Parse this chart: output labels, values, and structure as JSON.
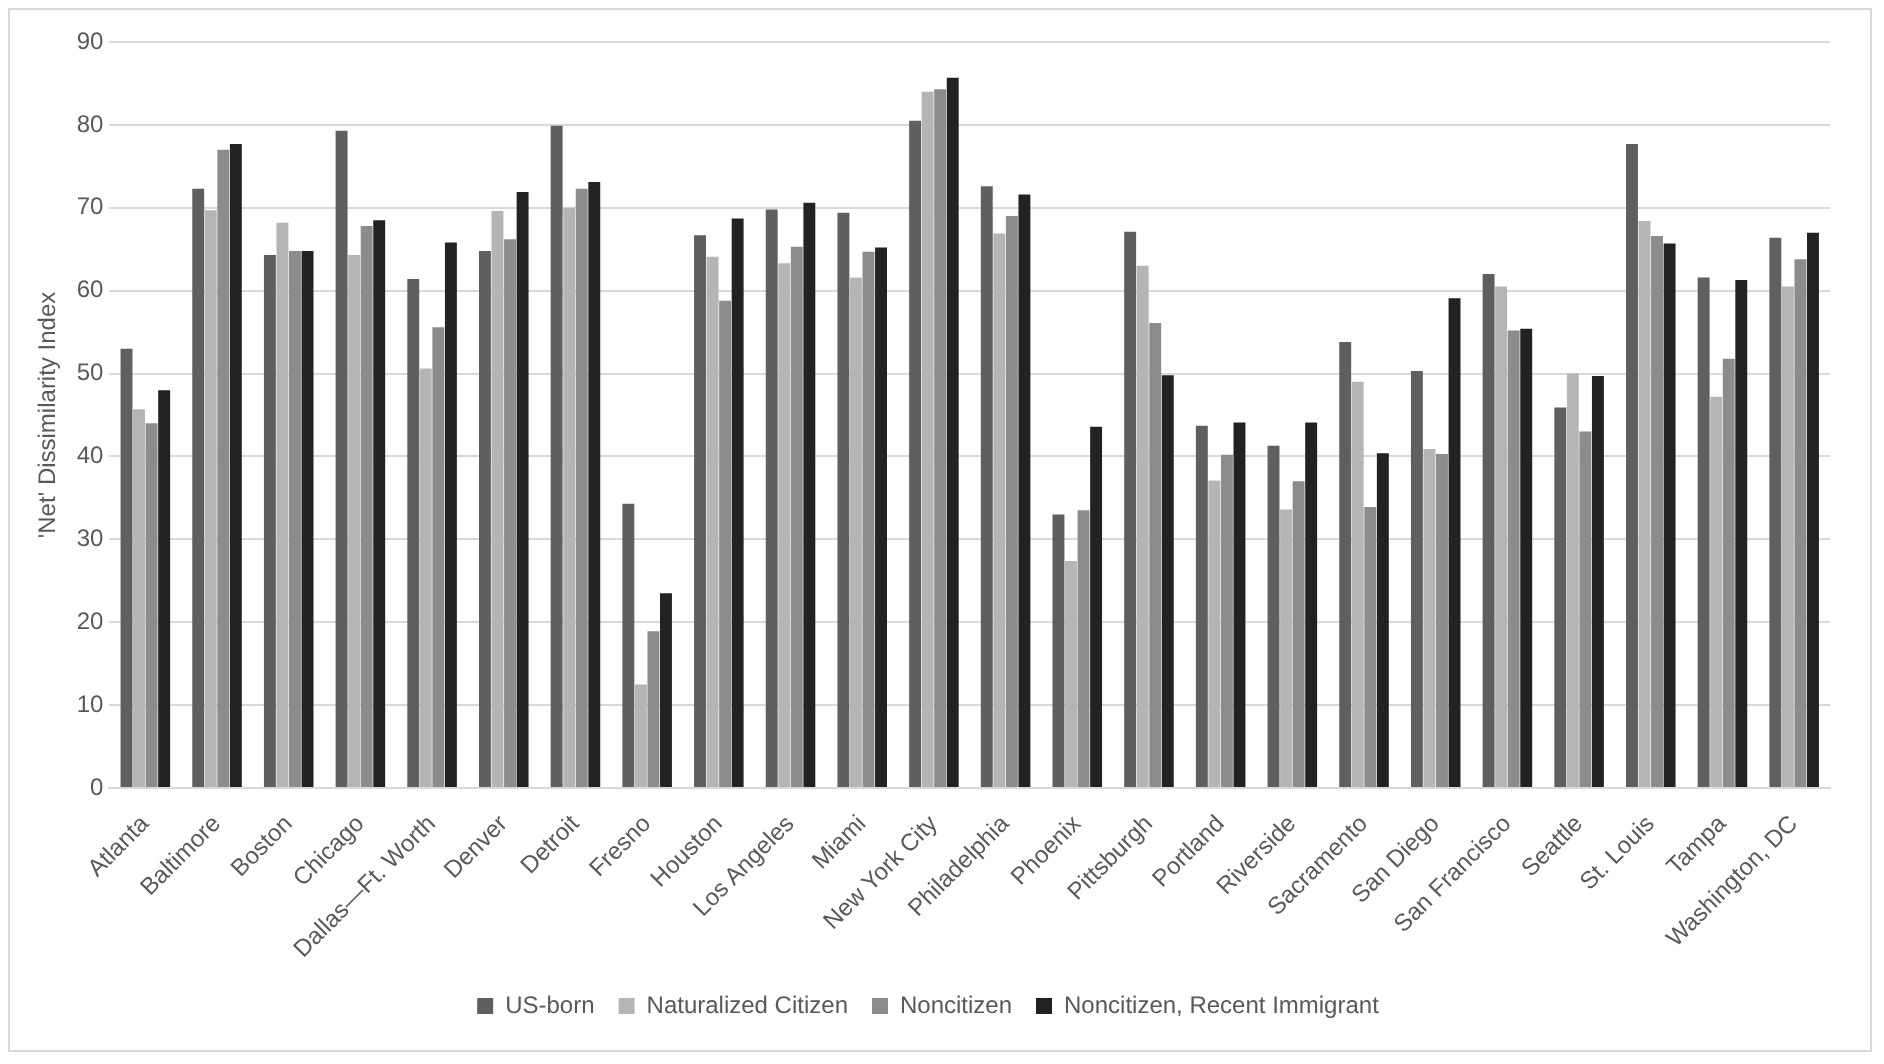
{
  "chart_data": {
    "type": "bar",
    "ylabel": "'Net' Dissimilarity Index",
    "categories": [
      "Atlanta",
      "Baltimore",
      "Boston",
      "Chicago",
      "Dallas—Ft. Worth",
      "Denver",
      "Detroit",
      "Fresno",
      "Houston",
      "Los Angeles",
      "Miami",
      "New York City",
      "Philadelphia",
      "Phoenix",
      "Pittsburgh",
      "Portland",
      "Riverside",
      "Sacramento",
      "San Diego",
      "San Francisco",
      "Seattle",
      "St. Louis",
      "Tampa",
      "Washington, DC"
    ],
    "series": [
      {
        "name": "US-born",
        "color": "#5f5f5f",
        "values": [
          53,
          72.3,
          64.3,
          79.3,
          61.4,
          64.8,
          79.9,
          34.3,
          66.7,
          69.8,
          69.4,
          80.5,
          72.6,
          33,
          67.1,
          43.7,
          41.3,
          53.8,
          50.3,
          62,
          45.9,
          77.7,
          61.6,
          66.4
        ]
      },
      {
        "name": "Naturalized Citizen",
        "color": "#b5b5b5",
        "values": [
          45.7,
          69.7,
          68.2,
          64.3,
          50.6,
          69.6,
          70,
          12.5,
          64.1,
          63.3,
          61.6,
          84,
          66.9,
          27.4,
          63,
          37.1,
          33.6,
          49,
          40.9,
          60.5,
          50,
          68.4,
          47.2,
          60.5
        ]
      },
      {
        "name": "Noncitizen",
        "color": "#8c8c8c",
        "values": [
          44,
          77,
          64.8,
          67.8,
          55.6,
          66.2,
          72.3,
          18.9,
          58.8,
          65.3,
          64.7,
          84.3,
          69,
          33.5,
          56.1,
          40.2,
          37,
          33.9,
          40.3,
          55.2,
          43,
          66.6,
          51.8,
          63.8
        ]
      },
      {
        "name": "Noncitizen, Recent Immigrant",
        "color": "#222222",
        "values": [
          48,
          77.7,
          64.8,
          68.5,
          65.8,
          71.9,
          73.1,
          23.5,
          68.7,
          70.6,
          65.2,
          85.7,
          71.6,
          43.6,
          49.8,
          44.1,
          44.1,
          40.4,
          59.1,
          55.4,
          49.7,
          65.7,
          61.3,
          67
        ]
      }
    ],
    "ylim": [
      0,
      90
    ],
    "yticks": [
      0,
      10,
      20,
      30,
      40,
      50,
      60,
      70,
      80,
      90
    ],
    "grid": "y",
    "legend": "bottom"
  }
}
